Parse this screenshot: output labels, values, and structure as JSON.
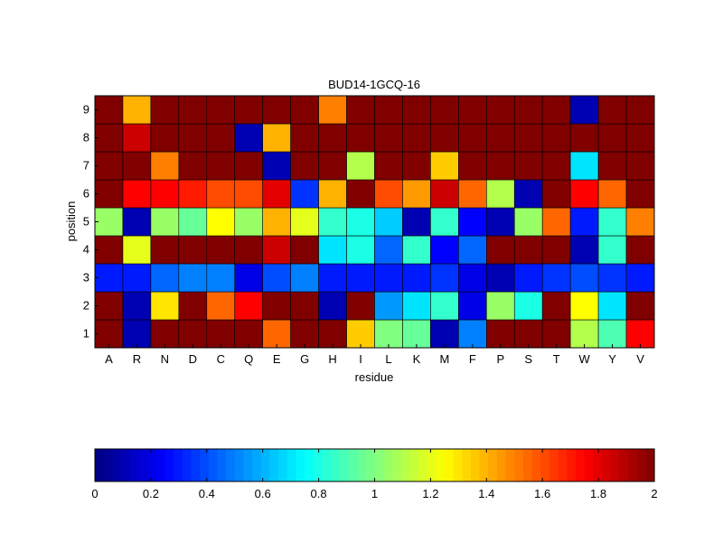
{
  "chart_data": {
    "type": "heatmap",
    "title": "BUD14-1GCQ-16",
    "xlabel": "residue",
    "ylabel": "position",
    "x_categories": [
      "A",
      "R",
      "N",
      "D",
      "C",
      "Q",
      "E",
      "G",
      "H",
      "I",
      "L",
      "K",
      "M",
      "F",
      "P",
      "S",
      "T",
      "W",
      "Y",
      "V"
    ],
    "y_categories": [
      "1",
      "2",
      "3",
      "4",
      "5",
      "6",
      "7",
      "8",
      "9"
    ],
    "values": [
      [
        2.0,
        0.1,
        2.0,
        2.0,
        2.0,
        2.0,
        1.55,
        2.0,
        2.0,
        1.35,
        1.0,
        0.95,
        0.1,
        0.5,
        2.0,
        2.0,
        2.0,
        1.1,
        0.9,
        1.75
      ],
      [
        2.0,
        0.1,
        1.3,
        2.0,
        1.55,
        1.75,
        2.0,
        2.0,
        0.1,
        2.0,
        0.55,
        0.7,
        0.85,
        0.2,
        1.05,
        0.8,
        2.0,
        1.25,
        0.7,
        2.0
      ],
      [
        0.3,
        0.3,
        0.45,
        0.5,
        0.5,
        0.2,
        0.4,
        0.5,
        0.3,
        0.3,
        0.3,
        0.3,
        0.35,
        0.2,
        0.1,
        0.3,
        0.35,
        0.4,
        0.35,
        0.3
      ],
      [
        2.0,
        1.2,
        2.0,
        2.0,
        2.0,
        2.0,
        1.85,
        2.0,
        0.7,
        0.8,
        0.45,
        0.85,
        0.25,
        0.45,
        2.0,
        2.0,
        2.0,
        0.1,
        0.85,
        2.0
      ],
      [
        1.05,
        0.1,
        1.05,
        0.95,
        1.25,
        1.05,
        1.4,
        1.2,
        0.85,
        0.8,
        0.65,
        0.1,
        0.85,
        0.25,
        0.1,
        1.05,
        1.55,
        0.3,
        0.85,
        1.5
      ],
      [
        2.0,
        1.75,
        1.75,
        1.7,
        1.6,
        1.6,
        1.8,
        0.35,
        1.4,
        2.0,
        1.6,
        1.45,
        1.85,
        1.55,
        1.1,
        0.1,
        2.0,
        1.75,
        1.55,
        2.0
      ],
      [
        2.0,
        2.0,
        1.5,
        2.0,
        2.0,
        2.0,
        0.1,
        2.0,
        2.0,
        1.1,
        2.0,
        2.0,
        1.35,
        2.0,
        2.0,
        2.0,
        2.0,
        0.7,
        2.0,
        2.0
      ],
      [
        2.0,
        1.85,
        2.0,
        2.0,
        2.0,
        0.1,
        1.4,
        2.0,
        2.0,
        2.0,
        2.0,
        2.0,
        2.0,
        2.0,
        2.0,
        2.0,
        2.0,
        2.0,
        2.0,
        2.0
      ],
      [
        2.0,
        1.4,
        2.0,
        2.0,
        2.0,
        2.0,
        2.0,
        2.0,
        1.5,
        2.0,
        2.0,
        2.0,
        2.0,
        2.0,
        2.0,
        2.0,
        2.0,
        0.1,
        2.0,
        2.0
      ]
    ],
    "colorbar": {
      "range": [
        0,
        2
      ],
      "ticks": [
        "0",
        "0.2",
        "0.4",
        "0.6",
        "0.8",
        "1",
        "1.2",
        "1.4",
        "1.6",
        "1.8",
        "2"
      ],
      "steps": 64,
      "colormap": "jet"
    }
  }
}
